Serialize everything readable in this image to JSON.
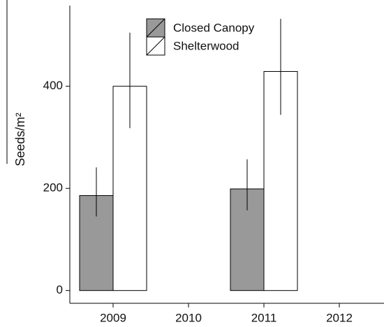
{
  "chart_data": {
    "type": "bar",
    "y_label": "Seeds/m²",
    "categories": [
      "2009",
      "2010",
      "2011",
      "2012"
    ],
    "series": [
      {
        "name": "Closed Canopy",
        "color": "#999999",
        "values": [
          186,
          0,
          199,
          0
        ],
        "lower": [
          145,
          0,
          157,
          0
        ],
        "upper": [
          241,
          0,
          257,
          0
        ]
      },
      {
        "name": "Shelterwood",
        "color": "#ffffff",
        "values": [
          400,
          0,
          429,
          0
        ],
        "lower": [
          318,
          0,
          344,
          0
        ],
        "upper": [
          505,
          0,
          532,
          0
        ]
      }
    ],
    "ylim": [
      -25,
      558
    ],
    "yticks": [
      0,
      200,
      400
    ],
    "legend": "top"
  }
}
